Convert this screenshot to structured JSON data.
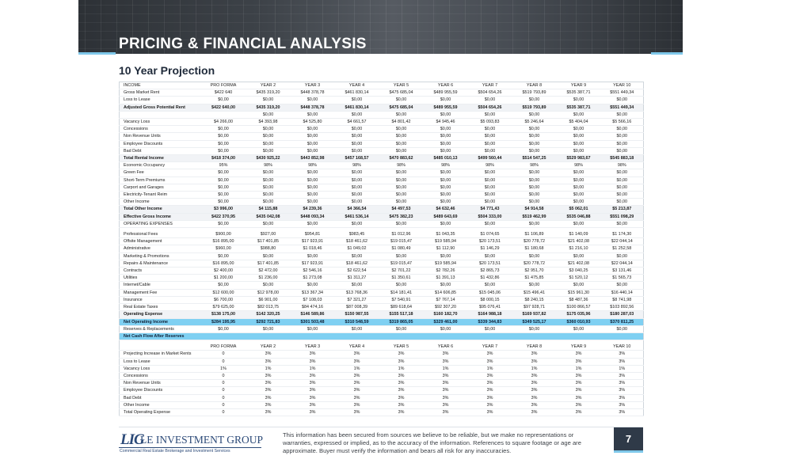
{
  "header": {
    "title": "PRICING & FINANCIAL ANALYSIS",
    "subtitle": "10 Year Projection"
  },
  "table": {
    "columns": [
      "INCOME",
      "PRO FORMA",
      "YEAR 2",
      "YEAR 3",
      "YEAR 4",
      "YEAR 5",
      "YEAR 6",
      "YEAR 7",
      "YEAR 8",
      "YEAR 9",
      "YEAR 10"
    ],
    "rows": [
      {
        "type": "header",
        "cells": [
          "INCOME",
          "PRO FORMA",
          "YEAR 2",
          "YEAR 3",
          "YEAR 4",
          "YEAR 5",
          "YEAR 6",
          "YEAR 7",
          "YEAR 8",
          "YEAR 9",
          "YEAR 10"
        ]
      },
      {
        "type": "normal",
        "cells": [
          "Gross Market Rent",
          "$422 640",
          "$435 319,20",
          "$448 378,78",
          "$461 830,14",
          "$475 685,04",
          "$489 955,59",
          "$504 654,26",
          "$519 793,89",
          "$535 387,71",
          "$551 449,34"
        ]
      },
      {
        "type": "normal",
        "cells": [
          "Loss to Lease",
          "$0,00",
          "$0,00",
          "$0,00",
          "$0,00",
          "$0,00",
          "$0,00",
          "$0,00",
          "$0,00",
          "$0,00",
          "$0,00"
        ]
      },
      {
        "type": "bold",
        "cells": [
          "Adjusted Gross Potential Rent",
          "$422 640,00",
          "$435 319,20",
          "$448 378,78",
          "$461 830,14",
          "$475 685,04",
          "$489 955,59",
          "$504 654,26",
          "$519 793,89",
          "$535 387,71",
          "$551 449,34"
        ]
      },
      {
        "type": "blank",
        "cells": [
          "",
          "",
          "$0,00",
          "$0,00",
          "$0,00",
          "$0,00",
          "$0,00",
          "$0,00",
          "$0,00",
          "$0,00",
          "$0,00"
        ]
      },
      {
        "type": "normal",
        "cells": [
          "Vacancy Loss",
          "$4 266,00",
          "$4 393,98",
          "$4 525,80",
          "$4 661,57",
          "$4 801,42",
          "$4 945,46",
          "$5 093,83",
          "$5 246,64",
          "$5 404,04",
          "$5 566,16"
        ]
      },
      {
        "type": "normal",
        "cells": [
          "Concessions",
          "$0,00",
          "$0,00",
          "$0,00",
          "$0,00",
          "$0,00",
          "$0,00",
          "$0,00",
          "$0,00",
          "$0,00",
          "$0,00"
        ]
      },
      {
        "type": "normal",
        "cells": [
          "Non Revenue Units",
          "$0,00",
          "$0,00",
          "$0,00",
          "$0,00",
          "$0,00",
          "$0,00",
          "$0,00",
          "$0,00",
          "$0,00",
          "$0,00"
        ]
      },
      {
        "type": "normal",
        "cells": [
          "Employee Discounts",
          "$0,00",
          "$0,00",
          "$0,00",
          "$0,00",
          "$0,00",
          "$0,00",
          "$0,00",
          "$0,00",
          "$0,00",
          "$0,00"
        ]
      },
      {
        "type": "normal",
        "cells": [
          "Bad Debt",
          "$0,00",
          "$0,00",
          "$0,00",
          "$0,00",
          "$0,00",
          "$0,00",
          "$0,00",
          "$0,00",
          "$0,00",
          "$0,00"
        ]
      },
      {
        "type": "bold",
        "cells": [
          "Total Rental Income",
          "$418 374,00",
          "$430 925,22",
          "$443 852,98",
          "$457 168,57",
          "$470 883,62",
          "$485 010,13",
          "$499 560,44",
          "$514 547,25",
          "$529 983,67",
          "$545 883,18"
        ]
      },
      {
        "type": "normal",
        "cells": [
          "Economic Occupancy",
          "95%",
          "98%",
          "98%",
          "98%",
          "98%",
          "98%",
          "98%",
          "98%",
          "98%",
          "98%"
        ]
      },
      {
        "type": "normal",
        "cells": [
          "Green Fee",
          "$0,00",
          "$0,00",
          "$0,00",
          "$0,00",
          "$0,00",
          "$0,00",
          "$0,00",
          "$0,00",
          "$0,00",
          "$0,00"
        ]
      },
      {
        "type": "normal",
        "cells": [
          "Short-Term Premiums",
          "$0,00",
          "$0,00",
          "$0,00",
          "$0,00",
          "$0,00",
          "$0,00",
          "$0,00",
          "$0,00",
          "$0,00",
          "$0,00"
        ]
      },
      {
        "type": "normal",
        "cells": [
          "Carport and Garages",
          "$0,00",
          "$0,00",
          "$0,00",
          "$0,00",
          "$0,00",
          "$0,00",
          "$0,00",
          "$0,00",
          "$0,00",
          "$0,00"
        ]
      },
      {
        "type": "normal",
        "cells": [
          "Electricity-Tenant Reim",
          "$0,00",
          "$0,00",
          "$0,00",
          "$0,00",
          "$0,00",
          "$0,00",
          "$0,00",
          "$0,00",
          "$0,00",
          "$0,00"
        ]
      },
      {
        "type": "normal",
        "cells": [
          "Other Income",
          "$0,00",
          "$0,00",
          "$0,00",
          "$0,00",
          "$0,00",
          "$0,00",
          "$0,00",
          "$0,00",
          "$0,00",
          "$0,00"
        ]
      },
      {
        "type": "bold",
        "cells": [
          "Total Other Income",
          "$3 996,00",
          "$4 115,88",
          "$4 239,36",
          "$4 366,54",
          "$4 497,53",
          "$4 632,46",
          "$4 771,43",
          "$4 914,58",
          "$5 062,01",
          "$5 213,87"
        ]
      },
      {
        "type": "bold",
        "cells": [
          "Effective Gross Income",
          "$422 370,95",
          "$435 042,08",
          "$448 093,34",
          "$461 536,14",
          "$475 382,23",
          "$489 643,69",
          "$504 333,00",
          "$519 462,99",
          "$535 046,88",
          "$551 098,29"
        ]
      },
      {
        "type": "header",
        "cells": [
          "OPERATING EXPENSES",
          "$0,00",
          "$0,00",
          "$0,00",
          "$0,00",
          "$0,00",
          "$0,00",
          "$0,00",
          "$0,00",
          "$0,00",
          "$0,00"
        ]
      },
      {
        "type": "spacer",
        "cells": [
          "",
          "",
          "",
          "",
          "",
          "",
          "",
          "",
          "",
          "",
          ""
        ]
      },
      {
        "type": "normal",
        "cells": [
          "Professional Fees",
          "$900,00",
          "$927,00",
          "$954,81",
          "$983,45",
          "$1 012,96",
          "$1 043,35",
          "$1 074,65",
          "$1 106,89",
          "$1 140,09",
          "$1 174,30"
        ]
      },
      {
        "type": "normal",
        "cells": [
          "Offsite Management",
          "$16 895,00",
          "$17 401,85",
          "$17 923,91",
          "$18 461,62",
          "$19 015,47",
          "$19 585,94",
          "$20 173,51",
          "$20 778,72",
          "$21 402,08",
          "$22 044,14"
        ]
      },
      {
        "type": "normal",
        "cells": [
          "Administrative",
          "$960,00",
          "$988,80",
          "$1 018,46",
          "$1 049,02",
          "$1 080,49",
          "$1 112,90",
          "$1 146,29",
          "$1 180,68",
          "$1 216,10",
          "$1 252,58"
        ]
      },
      {
        "type": "normal",
        "cells": [
          "Marketing & Promotions",
          "$0,00",
          "$0,00",
          "$0,00",
          "$0,00",
          "$0,00",
          "$0,00",
          "$0,00",
          "$0,00",
          "$0,00",
          "$0,00"
        ]
      },
      {
        "type": "normal",
        "cells": [
          "Repairs & Maintenance",
          "$16 895,00",
          "$17 401,85",
          "$17 923,91",
          "$18 461,62",
          "$19 015,47",
          "$19 585,94",
          "$20 173,51",
          "$20 778,72",
          "$21 402,08",
          "$22 044,14"
        ]
      },
      {
        "type": "normal",
        "cells": [
          "Contracts",
          "$2 400,00",
          "$2 472,00",
          "$2 546,16",
          "$2 622,54",
          "$2 701,22",
          "$2 782,26",
          "$2 865,73",
          "$2 951,70",
          "$3 040,25",
          "$3 131,46"
        ]
      },
      {
        "type": "normal",
        "cells": [
          "Utilities",
          "$1 200,00",
          "$1 236,00",
          "$1 273,08",
          "$1 311,27",
          "$1 350,61",
          "$1 391,13",
          "$1 432,86",
          "$1 475,85",
          "$1 520,12",
          "$1 565,73"
        ]
      },
      {
        "type": "normal",
        "cells": [
          "Internet/Cable",
          "$0,00",
          "$0,00",
          "$0,00",
          "$0,00",
          "$0,00",
          "$0,00",
          "$0,00",
          "$0,00",
          "$0,00",
          "$0,00"
        ]
      },
      {
        "type": "normal",
        "cells": [
          "Management Fee",
          "$12 600,00",
          "$12 978,00",
          "$13 367,34",
          "$13 768,36",
          "$14 181,41",
          "$14 606,85",
          "$15 045,06",
          "$15 496,41",
          "$15 961,30",
          "$16 440,14"
        ]
      },
      {
        "type": "normal",
        "cells": [
          "Insurance",
          "$6 700,00",
          "$6 901,00",
          "$7 108,03",
          "$7 321,27",
          "$7 540,91",
          "$7 767,14",
          "$8 000,15",
          "$8 240,15",
          "$8 487,36",
          "$8 741,98"
        ]
      },
      {
        "type": "normal",
        "cells": [
          "Real Estate Taxes",
          "$79 625,00",
          "$82 013,75",
          "$84 474,16",
          "$87 008,39",
          "$89 618,64",
          "$92 307,20",
          "$95 076,41",
          "$97 928,71",
          "$100 866,57",
          "$103 892,56"
        ]
      },
      {
        "type": "bold",
        "cells": [
          "Operating Expense",
          "$138 175,00",
          "$142 320,25",
          "$146 589,86",
          "$150 987,55",
          "$155 517,18",
          "$160 182,70",
          "$164 988,18",
          "$169 937,82",
          "$175 035,96",
          "$180 287,03"
        ]
      },
      {
        "type": "hl",
        "cells": [
          "Net Operating Income",
          "$284 195,95",
          "$292 721,83",
          "$301 503,48",
          "$310 548,59",
          "$319 865,05",
          "$329 461,00",
          "$339 344,83",
          "$349 525,17",
          "$360 010,93",
          "$370 811,25"
        ]
      },
      {
        "type": "normal",
        "cells": [
          "Reserves & Replacements",
          "$0,00",
          "$0,00",
          "$0,00",
          "$0,00",
          "$0,00",
          "$0,00",
          "$0,00",
          "$0,00",
          "$0,00",
          "$0,00"
        ]
      },
      {
        "type": "hl",
        "cells": [
          "Net Cash Flow After Reserves",
          "",
          "",
          "",
          "",
          "",
          "",
          "",
          "",
          "",
          ""
        ]
      },
      {
        "type": "spacer",
        "cells": [
          "",
          "",
          "",
          "",
          "",
          "",
          "",
          "",
          "",
          "",
          ""
        ]
      },
      {
        "type": "header",
        "cells": [
          "",
          "PRO FORMA",
          "YEAR 2",
          "YEAR 3",
          "YEAR 4",
          "YEAR 5",
          "YEAR 6",
          "YEAR 7",
          "YEAR 8",
          "YEAR 9",
          "YEAR 10"
        ]
      },
      {
        "type": "normal",
        "cells": [
          "Projecting Increase in Market Rents",
          "0",
          "3%",
          "3%",
          "3%",
          "3%",
          "3%",
          "3%",
          "3%",
          "3%",
          "3%"
        ]
      },
      {
        "type": "normal",
        "cells": [
          "Loss to Lease",
          "0",
          "3%",
          "3%",
          "3%",
          "3%",
          "3%",
          "3%",
          "3%",
          "3%",
          "3%"
        ]
      },
      {
        "type": "normal",
        "cells": [
          "Vacancy Loss",
          "1%",
          "1%",
          "1%",
          "1%",
          "1%",
          "1%",
          "1%",
          "1%",
          "1%",
          "1%"
        ]
      },
      {
        "type": "normal",
        "cells": [
          "Concessions",
          "0",
          "3%",
          "3%",
          "3%",
          "3%",
          "3%",
          "3%",
          "3%",
          "3%",
          "3%"
        ]
      },
      {
        "type": "normal",
        "cells": [
          "Non Revenue Units",
          "0",
          "3%",
          "3%",
          "3%",
          "3%",
          "3%",
          "3%",
          "3%",
          "3%",
          "3%"
        ]
      },
      {
        "type": "normal",
        "cells": [
          "Employee Discounts",
          "0",
          "3%",
          "3%",
          "3%",
          "3%",
          "3%",
          "3%",
          "3%",
          "3%",
          "3%"
        ]
      },
      {
        "type": "normal",
        "cells": [
          "Bad Debt",
          "0",
          "3%",
          "3%",
          "3%",
          "3%",
          "3%",
          "3%",
          "3%",
          "3%",
          "3%"
        ]
      },
      {
        "type": "normal",
        "cells": [
          "Other Income",
          "0",
          "3%",
          "3%",
          "3%",
          "3%",
          "3%",
          "3%",
          "3%",
          "3%",
          "3%"
        ]
      },
      {
        "type": "normal",
        "cells": [
          "Total Operating Expense",
          "0",
          "3%",
          "3%",
          "3%",
          "3%",
          "3%",
          "3%",
          "3%",
          "3%",
          "3%"
        ]
      }
    ]
  },
  "footer": {
    "logo_monogram": "LIG",
    "logo_name": "LE INVESTMENT GROUP",
    "logo_tagline": "Commercial Real Estate Brokerage and Investment Services",
    "disclaimer": "This information has been secured from sources we believe to be reliable, but we make no representations or warranties, expressed or implied, as to the accuracy of the information. References to square footage or age are approximate. Buyer must verify the information and bears all risk for any inaccuracies.",
    "page_number": "7"
  },
  "colors": {
    "accent": "#7fc8ea",
    "highlight_row": "#7fd0f2",
    "brand": "#2c4a78",
    "page_box": "#2f3a48"
  }
}
